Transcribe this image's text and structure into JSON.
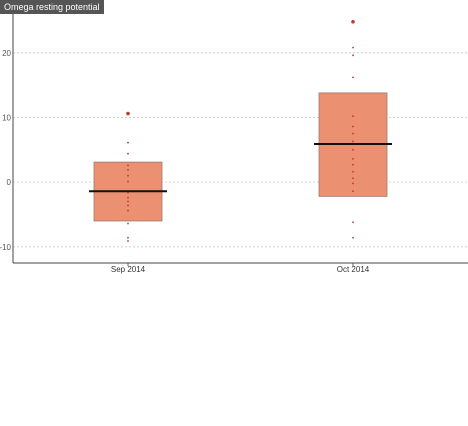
{
  "chart_data": {
    "type": "box",
    "title": "Omega resting potential",
    "categories": [
      "Sep 2014",
      "Oct 2014"
    ],
    "ylim": [
      -12.5,
      26
    ],
    "yticks": [
      -10,
      0,
      10,
      20
    ],
    "grid": "horizontal-dashed",
    "boxes": [
      {
        "category": "Sep 2014",
        "q1": -6,
        "median": -1.4,
        "q3": 3.1,
        "points": [
          -9.1,
          -8.6,
          -6.4,
          -4.4,
          -3.6,
          -3.0,
          -2.4,
          -1.6,
          0.1,
          1.0,
          1.9,
          2.6,
          4.4,
          6.1
        ],
        "outliers": [
          10.6
        ]
      },
      {
        "category": "Oct 2014",
        "q1": -2.2,
        "median": 5.9,
        "q3": 13.8,
        "points": [
          -8.6,
          -6.2,
          -1.4,
          -0.2,
          0.6,
          1.6,
          2.7,
          3.6,
          5.0,
          6.3,
          7.5,
          8.6,
          10.2,
          16.2,
          19.6,
          20.8
        ],
        "outliers": [
          24.8
        ]
      }
    ],
    "colors": {
      "box_fill": "#ec9072",
      "box_stroke": "#9a7a6e",
      "median": "#111111",
      "point": "#c0392b",
      "outlier": "#c0392b",
      "grid": "#c8c8c8",
      "axis": "#444444"
    }
  }
}
